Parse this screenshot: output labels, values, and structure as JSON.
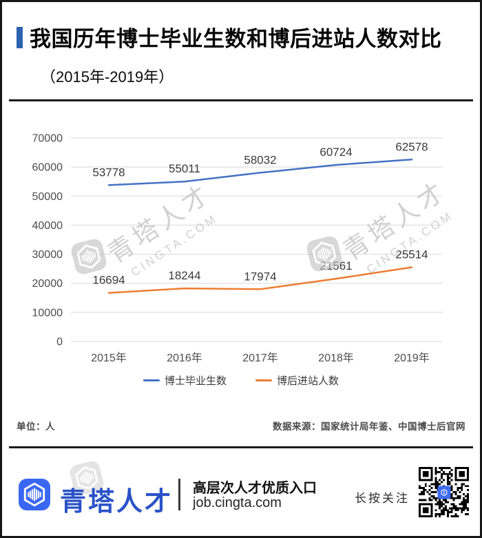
{
  "header": {
    "title": "我国历年博士毕业生数和博后进站人数对比",
    "subtitle": "（2015年-2019年）",
    "accent_color": "#2d62ae"
  },
  "chart_data": {
    "type": "line",
    "title": "我国历年博士毕业生数和博后进站人数对比（2015年-2019年）",
    "categories": [
      "2015年",
      "2016年",
      "2017年",
      "2018年",
      "2019年"
    ],
    "series": [
      {
        "name": "博士毕业生数",
        "color": "#4472c4",
        "values": [
          53778,
          55011,
          58032,
          60724,
          62578
        ]
      },
      {
        "name": "博后进站人数",
        "color": "#ed7d31",
        "values": [
          16694,
          18244,
          17974,
          21561,
          25514
        ]
      }
    ],
    "xlabel": "",
    "ylabel": "",
    "ylim": [
      0,
      70000
    ],
    "ytick_step": 10000,
    "grid": true,
    "grid_color": "#d8d8d8",
    "legend_position": "bottom"
  },
  "watermark": {
    "brand": "青塔人才",
    "domain": "CINGTA.COM"
  },
  "notes": {
    "unit": "单位：人",
    "source": "数据来源：国家统计局年鉴、中国博士后官网"
  },
  "footer": {
    "brand": "青塔人才",
    "tagline": "高层次人才优质入口",
    "url": "job.cingta.com",
    "qr_caption": "长按关注",
    "brand_color": "#2a52c8",
    "logo_color": "#3a67f2"
  }
}
